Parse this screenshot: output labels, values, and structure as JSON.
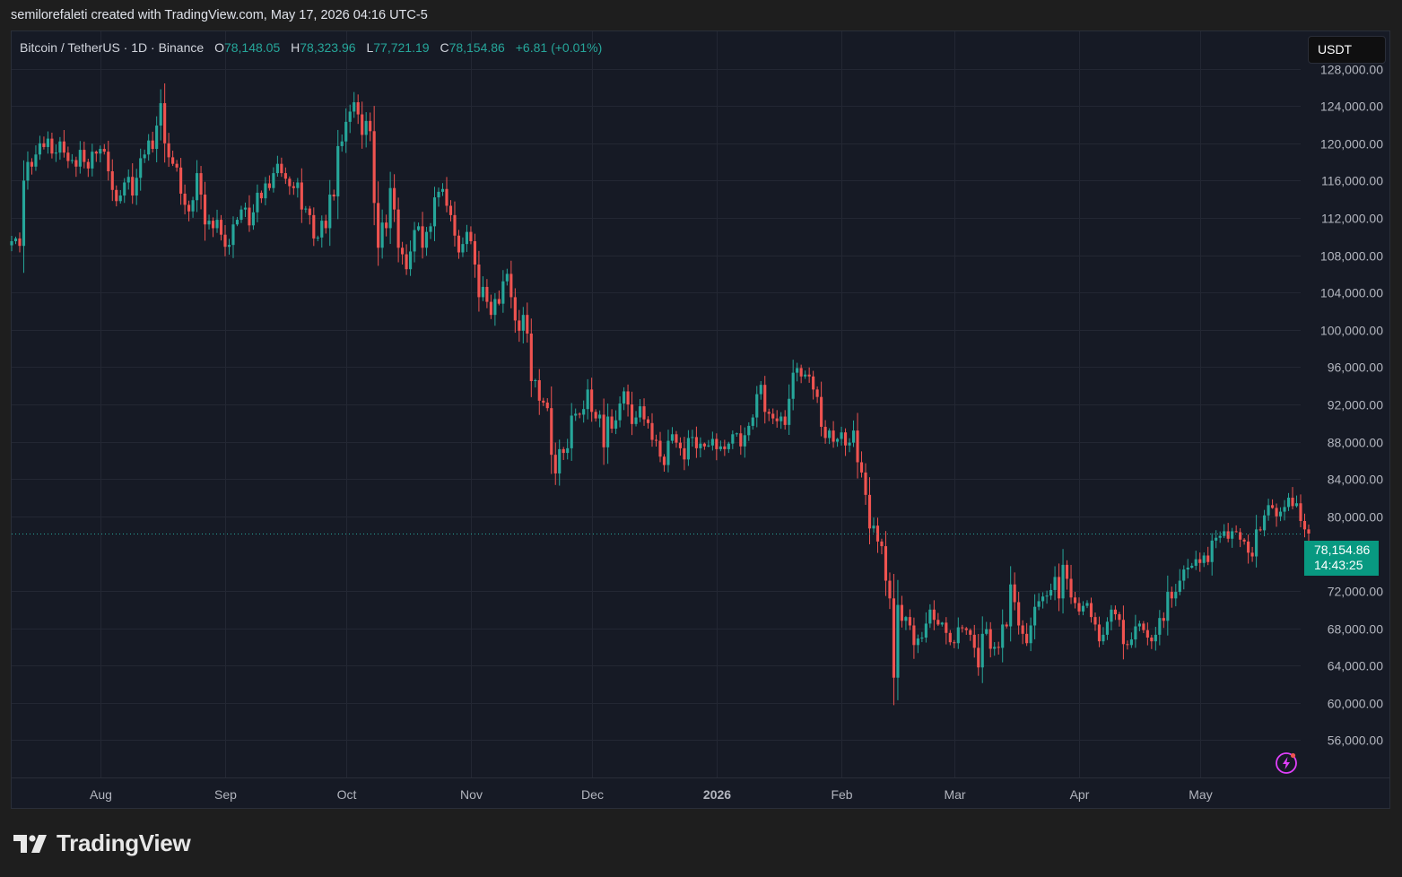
{
  "caption": "semilorefaleti created with TradingView.com, May 17, 2026 04:16 UTC-5",
  "legend": {
    "symbol": "Bitcoin / TetherUS · 1D · Binance",
    "o_label": "O",
    "o": "78,148.05",
    "h_label": "H",
    "h": "78,323.96",
    "l_label": "L",
    "l": "77,721.19",
    "c_label": "C",
    "c": "78,154.86",
    "change": "+6.81 (+0.01%)"
  },
  "currency": "USDT",
  "last_price": {
    "price": "78,154.86",
    "countdown": "14:43:25"
  },
  "brand": {
    "name": "TradingView",
    "logo_icon": "tradingview-logo-icon"
  },
  "colors": {
    "up": "#26a69a",
    "down": "#ef5350",
    "background": "#161a25",
    "grid": "#232733",
    "label_bg": "#089981",
    "bolt": "#e040fb"
  },
  "chart_data": {
    "type": "candlestick",
    "title": "Bitcoin / TetherUS · 1D · Binance",
    "interval": "1D",
    "grid": true,
    "price_axis": {
      "side": "right",
      "range": [
        52000,
        132000
      ],
      "ticks": [
        128000,
        124000,
        120000,
        116000,
        112000,
        108000,
        104000,
        100000,
        96000,
        92000,
        88000,
        84000,
        80000,
        72000,
        68000,
        64000,
        60000,
        56000
      ],
      "tick_labels": [
        "128,000.00",
        "124,000.00",
        "120,000.00",
        "116,000.00",
        "112,000.00",
        "108,000.00",
        "104,000.00",
        "100,000.00",
        "96,000.00",
        "92,000.00",
        "88,000.00",
        "84,000.00",
        "80,000.00",
        "72,000.00",
        "68,000.00",
        "64,000.00",
        "60,000.00",
        "56,000.00"
      ]
    },
    "time_axis": {
      "range": [
        "2025-07-10",
        "2026-05-26"
      ],
      "ticks": [
        {
          "label": "Aug",
          "date": "2025-08-01",
          "bold": false
        },
        {
          "label": "Sep",
          "date": "2025-09-01",
          "bold": false
        },
        {
          "label": "Oct",
          "date": "2025-10-01",
          "bold": false
        },
        {
          "label": "Nov",
          "date": "2025-11-01",
          "bold": false
        },
        {
          "label": "Dec",
          "date": "2025-12-01",
          "bold": false
        },
        {
          "label": "2026",
          "date": "2026-01-01",
          "bold": true
        },
        {
          "label": "Feb",
          "date": "2026-02-01",
          "bold": false
        },
        {
          "label": "Mar",
          "date": "2026-03-01",
          "bold": false
        },
        {
          "label": "Apr",
          "date": "2026-04-01",
          "bold": false
        },
        {
          "label": "May",
          "date": "2026-05-01",
          "bold": false
        }
      ]
    },
    "series": [
      {
        "name": "Bitcoin / TetherUS",
        "start_date": "2025-07-10",
        "close": [
          109500,
          109800,
          109000,
          116000,
          118000,
          117500,
          118800,
          120000,
          119600,
          120500,
          118900,
          119000,
          120200,
          119000,
          118100,
          118200,
          117500,
          119300,
          118000,
          117300,
          119100,
          118900,
          119400,
          119100,
          117000,
          115000,
          113800,
          114400,
          115800,
          116400,
          114400,
          116300,
          118400,
          118800,
          120300,
          119400,
          121900,
          124300,
          120000,
          118500,
          117800,
          117400,
          114600,
          113400,
          112700,
          113900,
          116800,
          114500,
          111300,
          111700,
          110900,
          111800,
          110200,
          108900,
          109100,
          111300,
          111800,
          112900,
          113100,
          111200,
          112600,
          114700,
          114100,
          115700,
          115200,
          116800,
          117800,
          116800,
          116200,
          115400,
          115200,
          115800,
          112900,
          113000,
          112300,
          109800,
          109900,
          111700,
          110900,
          114500,
          114300,
          119700,
          120200,
          122300,
          123400,
          124400,
          123100,
          120900,
          122400,
          121300,
          113600,
          108800,
          111500,
          110900,
          115200,
          112900,
          108800,
          108100,
          106500,
          108400,
          110700,
          111100,
          108800,
          110500,
          111100,
          114200,
          114800,
          115100,
          113300,
          112300,
          110100,
          108300,
          109200,
          110500,
          109500,
          107000,
          103500,
          104600,
          103000,
          101600,
          103300,
          102800,
          105200,
          106000,
          103500,
          101000,
          99900,
          101600,
          99600,
          94500,
          94600,
          92400,
          92200,
          91600,
          86600,
          84600,
          87200,
          86800,
          87300,
          90800,
          91000,
          90900,
          91500,
          93600,
          91200,
          90500,
          90900,
          87400,
          90700,
          89400,
          90300,
          92100,
          93400,
          92000,
          89900,
          90600,
          91800,
          90400,
          90000,
          88200,
          88100,
          86400,
          85500,
          88100,
          88800,
          87900,
          87300,
          86100,
          88400,
          88500,
          87300,
          87800,
          87500,
          87600,
          88300,
          87200,
          87500,
          87200,
          87800,
          88800,
          88900,
          87500,
          88700,
          89700,
          90600,
          93100,
          94100,
          91200,
          91000,
          90500,
          90200,
          90700,
          89800,
          92600,
          95400,
          95900,
          95000,
          95200,
          95000,
          93600,
          92800,
          89600,
          88400,
          89200,
          88000,
          88300,
          89000,
          87600,
          87900,
          89200,
          85800,
          84700,
          82300,
          78700,
          79000,
          77300,
          76800,
          73100,
          71200,
          62700,
          70500,
          68800,
          69200,
          68300,
          66200,
          66900,
          67000,
          68500,
          70000,
          68900,
          68400,
          68600,
          67500,
          66500,
          66400,
          68100,
          68000,
          67800,
          67300,
          65900,
          63800,
          67400,
          67900,
          65800,
          66000,
          65900,
          68400,
          68200,
          72700,
          70800,
          68300,
          67400,
          66400,
          68300,
          70300,
          70900,
          71400,
          71500,
          72100,
          73500,
          71200,
          74800,
          73300,
          71300,
          70700,
          69800,
          70400,
          70700,
          69200,
          68400,
          66600,
          67300,
          68700,
          70000,
          69500,
          68900,
          66300,
          66200,
          66800,
          68200,
          68500,
          67800,
          67000,
          66600,
          67300,
          69100,
          68800,
          71900,
          71200,
          71900,
          73100,
          74300,
          74500,
          74700,
          75400,
          75000,
          75800,
          75100,
          77400,
          77700,
          77900,
          78400,
          77600,
          78400,
          78300,
          77500,
          77300,
          76100,
          75700,
          78600,
          78500,
          80100,
          81200,
          80900,
          80000,
          80500,
          81000,
          82000,
          81100,
          81400,
          79500,
          78600,
          78154.86
        ]
      }
    ],
    "last_price": 78154.86
  }
}
